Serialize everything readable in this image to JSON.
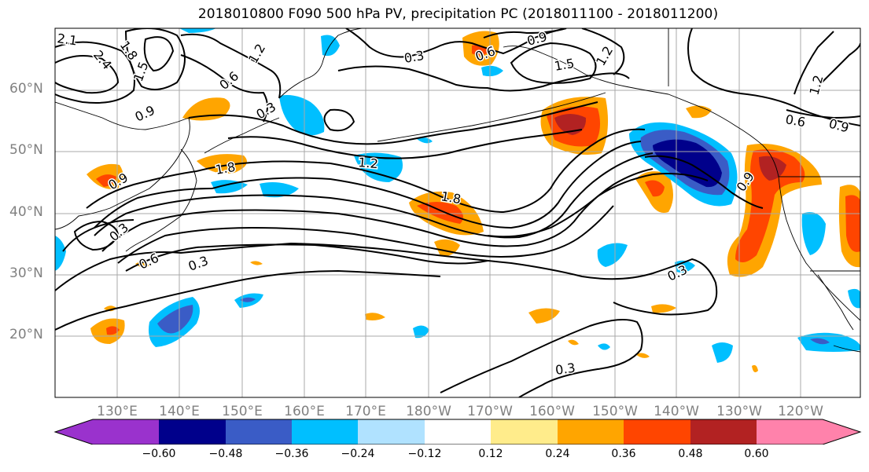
{
  "title": "2018010800 F090 500 hPa PV, precipitation PC (2018011100 - 2018011200)",
  "map": {
    "lat_labels": [
      "60°N",
      "50°N",
      "40°N",
      "30°N",
      "20°N"
    ],
    "lon_labels": [
      "130°E",
      "140°E",
      "150°E",
      "160°E",
      "170°E",
      "180°W",
      "170°W",
      "160°W",
      "150°W",
      "140°W",
      "130°W",
      "120°W"
    ],
    "contour_labels": [
      "2.1",
      "1.8",
      "2.4",
      "1.5",
      "0.9",
      "0.6",
      "1.2",
      "0.3",
      "0.6",
      "0.9",
      "1.5",
      "1.2",
      "1.2",
      "0.6",
      "0.9",
      "1.8",
      "1.2",
      "1.8",
      "0.9",
      "0.3",
      "0.6",
      "0.3",
      "0.3",
      "0.9",
      "0.3",
      "0.3"
    ],
    "shading_colors": {
      "neg_060": "#9a32cd",
      "neg_048": "#00008b",
      "neg_036": "#3a5cc6",
      "neg_024": "#00bfff",
      "neg_012": "#b0e2ff",
      "neutral": "#ffffff",
      "pos_012": "#ffec8b",
      "pos_024": "#ffa500",
      "pos_036": "#ff4500",
      "pos_048": "#b22222",
      "pos_060": "#ff82ab"
    }
  },
  "colorbar": {
    "tick_labels": [
      "−0.60",
      "−0.48",
      "−0.36",
      "−0.24",
      "−0.12",
      "0.12",
      "0.24",
      "0.36",
      "0.48",
      "0.60"
    ],
    "colors": [
      "#9a32cd",
      "#00008b",
      "#3a5cc6",
      "#00bfff",
      "#b0e2ff",
      "#ffffff",
      "#ffec8b",
      "#ffa500",
      "#ff4500",
      "#b22222",
      "#ff82ab"
    ]
  }
}
